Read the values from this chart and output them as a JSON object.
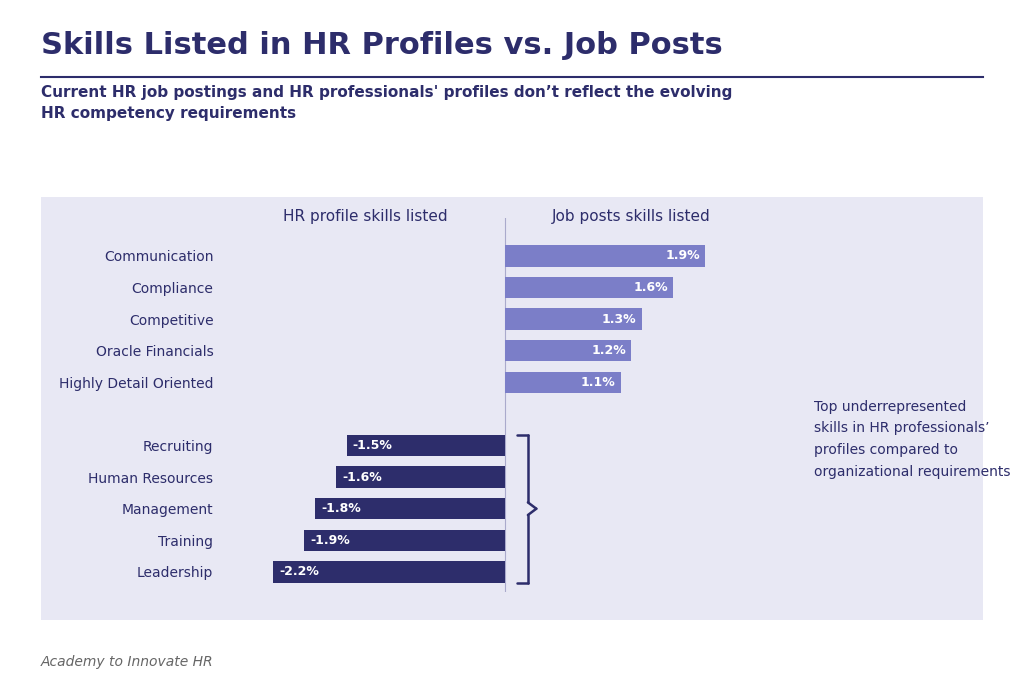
{
  "title": "Skills Listed in HR Profiles vs. Job Posts",
  "subtitle": "Current HR job postings and HR professionals' profiles don’t reflect the evolving\nHR competency requirements",
  "footer": "Academy to Innovate HR",
  "bg_color": "#e8e8f4",
  "page_bg": "#ffffff",
  "positive_categories": [
    "Communication",
    "Compliance",
    "Competitive",
    "Oracle Financials",
    "Highly Detail Oriented"
  ],
  "positive_values": [
    1.9,
    1.6,
    1.3,
    1.2,
    1.1
  ],
  "positive_color": "#7b7ec8",
  "positive_label": "Job posts skills listed",
  "negative_categories": [
    "Recruiting",
    "Human Resources",
    "Management",
    "Training",
    "Leadership"
  ],
  "negative_values": [
    -1.5,
    -1.6,
    -1.8,
    -1.9,
    -2.2
  ],
  "negative_color": "#2d2d6b",
  "negative_label": "HR profile skills listed",
  "annotation_text": "Top underrepresented\nskills in HR professionals’\nprofiles compared to\norganizational requirements",
  "title_color": "#2d2d6b",
  "subtitle_color": "#2d2d6b",
  "label_color": "#2d2d6b",
  "footer_color": "#666666"
}
